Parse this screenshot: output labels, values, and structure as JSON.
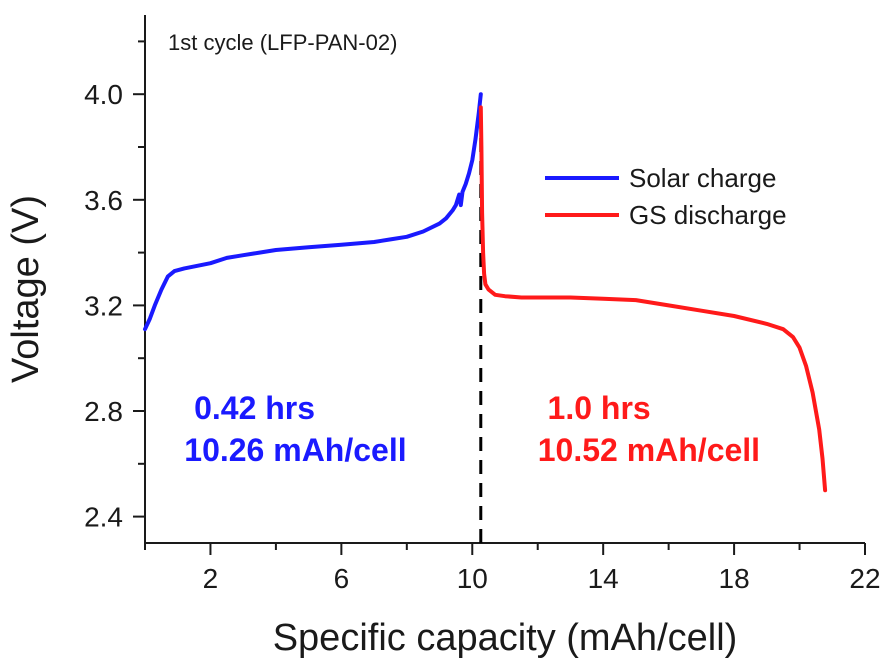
{
  "chart_data": {
    "type": "line",
    "title": "1st cycle (LFP-PAN-02)",
    "xlabel": "Specific capacity (mAh/cell)",
    "ylabel": "Voltage (V)",
    "xlim": [
      0,
      22
    ],
    "ylim": [
      2.3,
      4.3
    ],
    "x_major_ticks": [
      2,
      6,
      10,
      14,
      18,
      22
    ],
    "x_minor_ticks": [
      0,
      4,
      8,
      12,
      16,
      20
    ],
    "y_major_ticks": [
      2.4,
      2.8,
      3.2,
      3.6,
      4.0
    ],
    "y_minor_ticks": [
      2.6,
      3.0,
      3.4,
      3.8,
      4.2
    ],
    "x_tick_labels": [
      "2",
      "6",
      "10",
      "14",
      "18",
      "22"
    ],
    "y_tick_labels": [
      "2.4",
      "2.8",
      "3.2",
      "3.6",
      "4.0"
    ],
    "legend_position": "upper-right",
    "series": [
      {
        "name": "Solar charge",
        "color": "#1a1aff",
        "x": [
          0,
          0.15,
          0.3,
          0.5,
          0.7,
          0.9,
          1.2,
          1.6,
          2.0,
          2.5,
          3.0,
          3.5,
          4.0,
          5.0,
          6.0,
          7.0,
          7.5,
          8.0,
          8.5,
          9.0,
          9.2,
          9.4,
          9.5,
          9.6,
          9.65,
          9.7,
          9.8,
          9.9,
          10.0,
          10.1,
          10.2,
          10.26
        ],
        "values": [
          3.11,
          3.15,
          3.2,
          3.26,
          3.31,
          3.33,
          3.34,
          3.35,
          3.36,
          3.38,
          3.39,
          3.4,
          3.41,
          3.42,
          3.43,
          3.44,
          3.45,
          3.46,
          3.48,
          3.51,
          3.53,
          3.56,
          3.58,
          3.62,
          3.58,
          3.63,
          3.66,
          3.7,
          3.75,
          3.83,
          3.93,
          4.0
        ]
      },
      {
        "name": "GS discharge",
        "color": "#ff1a1a",
        "x": [
          10.26,
          10.28,
          10.3,
          10.33,
          10.36,
          10.4,
          10.5,
          10.7,
          11.0,
          11.5,
          12.0,
          13.0,
          14.0,
          15.0,
          16.0,
          17.0,
          18.0,
          19.0,
          19.5,
          19.8,
          20.0,
          20.2,
          20.4,
          20.6,
          20.7,
          20.78
        ],
        "values": [
          3.95,
          3.8,
          3.55,
          3.4,
          3.32,
          3.28,
          3.26,
          3.24,
          3.235,
          3.23,
          3.23,
          3.23,
          3.225,
          3.22,
          3.2,
          3.18,
          3.16,
          3.13,
          3.11,
          3.08,
          3.04,
          2.97,
          2.87,
          2.73,
          2.62,
          2.5
        ]
      }
    ],
    "divider": {
      "x": 10.26,
      "y_from": 2.3,
      "y_to": 3.95,
      "style": "dashed",
      "color": "#000000"
    },
    "annotations": [
      {
        "text": "0.42 hrs",
        "x": 1.5,
        "y": 2.77,
        "color": "#1a1aff"
      },
      {
        "text": "10.26 mAh/cell",
        "x": 1.2,
        "y": 2.61,
        "color": "#1a1aff"
      },
      {
        "text": "1.0 hrs",
        "x": 12.3,
        "y": 2.77,
        "color": "#ff1a1a"
      },
      {
        "text": "10.52 mAh/cell",
        "x": 12.0,
        "y": 2.61,
        "color": "#ff1a1a"
      }
    ]
  }
}
